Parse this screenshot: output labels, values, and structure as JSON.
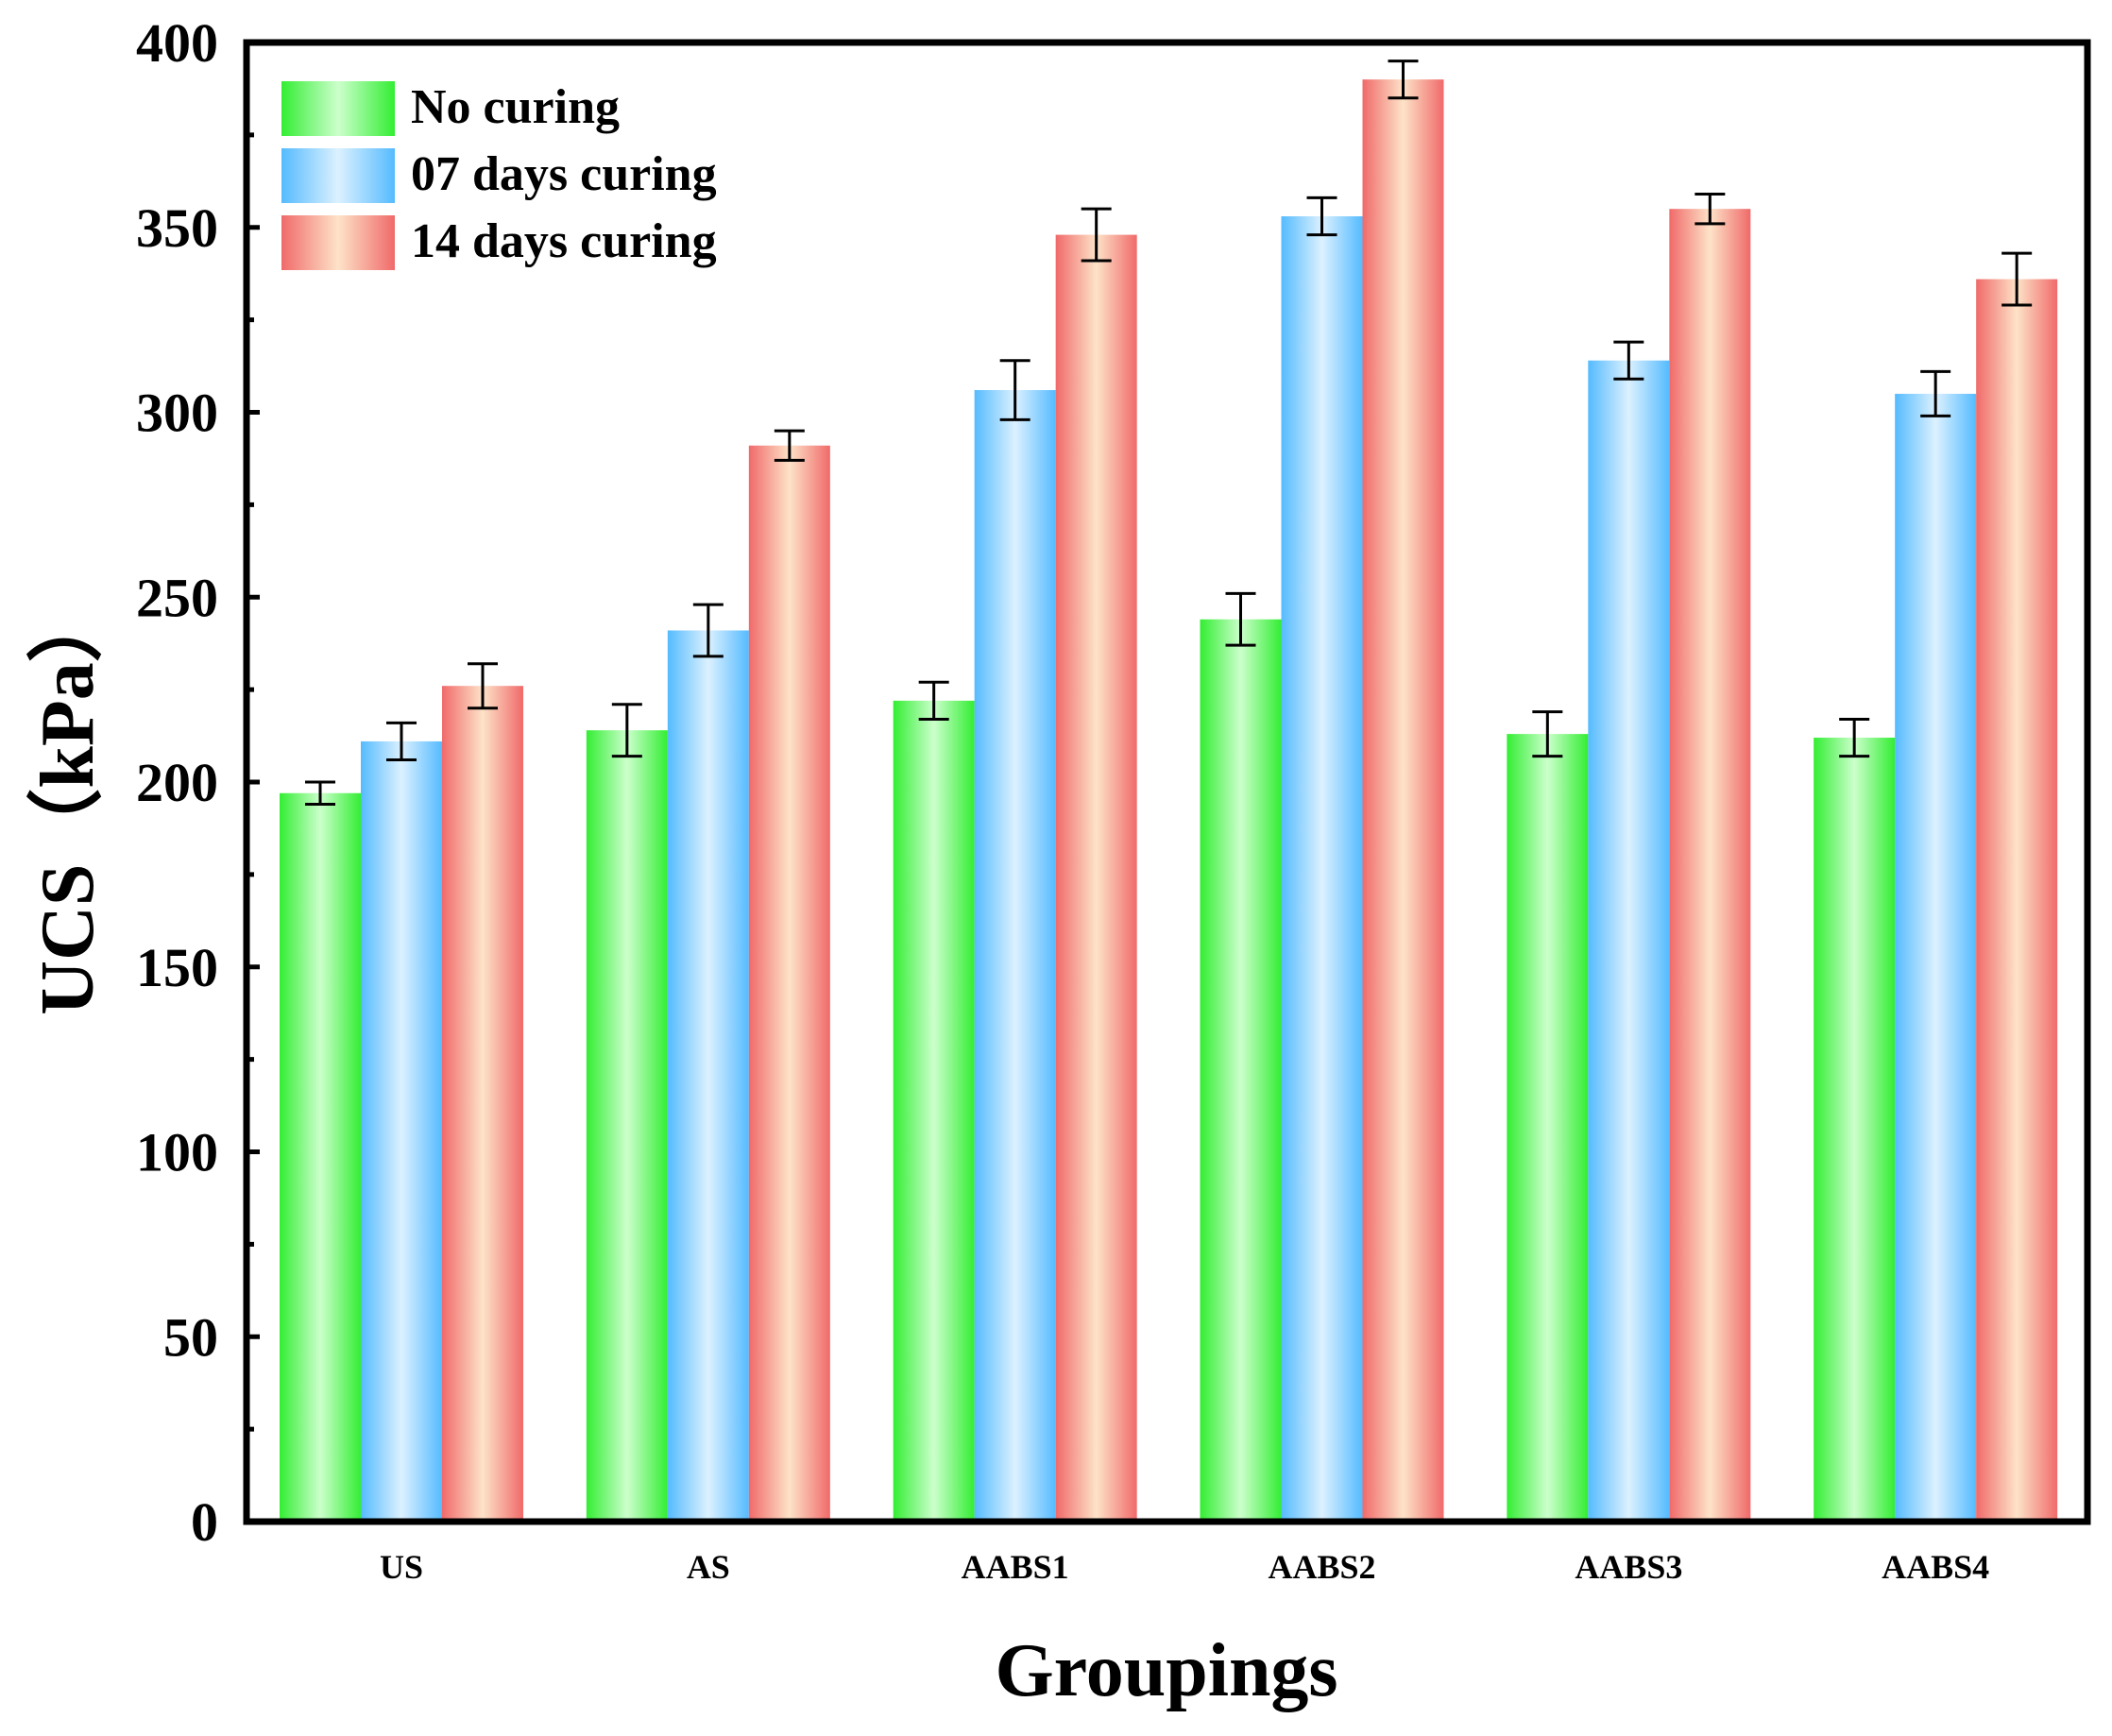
{
  "chart_data": {
    "type": "bar",
    "title": "",
    "xlabel": "Groupings",
    "ylabel": "UCS（kPa）",
    "ylim": [
      0,
      400
    ],
    "yticks": [
      "0",
      "50",
      "100",
      "150",
      "200",
      "250",
      "300",
      "350",
      "400"
    ],
    "categories": [
      "US",
      "AS",
      "AABS1",
      "AABS2",
      "AABS3",
      "AABS4"
    ],
    "series": [
      {
        "name": "No curing",
        "values": [
          197,
          214,
          222,
          244,
          213,
          212
        ],
        "errors": [
          3,
          7,
          5,
          7,
          6,
          5
        ],
        "color": "#33ee33",
        "light": "#ccffcc"
      },
      {
        "name": "07 days curing",
        "values": [
          211,
          241,
          306,
          353,
          314,
          305
        ],
        "errors": [
          5,
          7,
          8,
          5,
          5,
          6
        ],
        "color": "#55bbff",
        "light": "#dcf1ff"
      },
      {
        "name": "14 days curing",
        "values": [
          226,
          291,
          348,
          390,
          355,
          336
        ],
        "errors": [
          6,
          4,
          7,
          5,
          4,
          7
        ],
        "color": "#f06a6a",
        "light": "#fde3c8"
      }
    ],
    "legend_position": "top-left",
    "grid": false
  }
}
